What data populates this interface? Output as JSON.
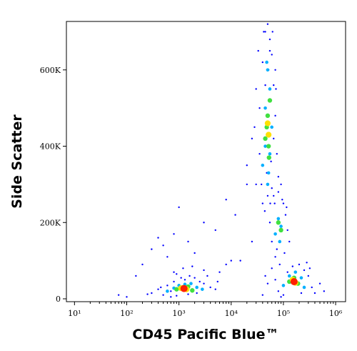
{
  "chart_data": {
    "type": "scatter",
    "xlabel": "CD45 Pacific Blue™",
    "ylabel": "Side Scatter",
    "xscale": "log",
    "xlim": [
      7,
      1550000
    ],
    "xticks": [
      {
        "value": 10,
        "label": "10¹"
      },
      {
        "value": 100,
        "label": "10²"
      },
      {
        "value": 1000,
        "label": "10³"
      },
      {
        "value": 10000,
        "label": "10⁴"
      },
      {
        "value": 100000,
        "label": "10⁵"
      },
      {
        "value": 1000000,
        "label": "10⁶"
      }
    ],
    "ylim": [
      -7500,
      727000
    ],
    "yticks": [
      0,
      {
        "value": 200000,
        "label": "200K"
      },
      {
        "value": 400000,
        "label": "400K"
      },
      {
        "value": 600000,
        "label": "600K"
      }
    ],
    "series": [
      {
        "color": "#0000ff",
        "x": [
          300,
          400,
          500,
          600,
          700,
          800,
          900,
          1100,
          1300,
          1600,
          2000,
          2500,
          3000,
          3500,
          4000,
          5000,
          6000,
          700,
          1500,
          2200,
          800,
          1200,
          3000,
          450,
          5500,
          8000,
          250,
          10000,
          1800,
          900,
          100,
          150,
          200,
          300,
          400,
          500,
          600,
          800,
          1000,
          1500,
          2000,
          3000,
          5000,
          8000,
          12000,
          15000,
          20000,
          25000,
          70,
          20000,
          25000,
          30000,
          35000,
          40000,
          45000,
          50000,
          55000,
          60000,
          65000,
          70000,
          75000,
          80000,
          30000,
          40000,
          50000,
          60000,
          70000,
          35000,
          45000,
          55000,
          65000,
          28000,
          38000,
          48000,
          58000,
          68000,
          42000,
          52000,
          62000,
          44000,
          56000,
          33000,
          72000,
          55000,
          60000,
          70000,
          80000,
          90000,
          100000,
          110000,
          120000,
          130000,
          65000,
          75000,
          85000,
          95000,
          105000,
          115000,
          40000,
          50000,
          60000,
          80000,
          100000,
          120000,
          150000,
          200000,
          250000,
          300000,
          350000,
          400000,
          500000,
          600000,
          45000,
          70000,
          90000,
          220000,
          280000,
          320000
        ],
        "values": [
          15000,
          25000,
          10000,
          35000,
          20000,
          45000,
          8000,
          55000,
          50000,
          60000,
          55000,
          45000,
          40000,
          60000,
          30000,
          25000,
          70000,
          5000,
          12000,
          15000,
          70000,
          80000,
          75000,
          30000,
          45000,
          90000,
          12000,
          100000,
          85000,
          65000,
          5000,
          60000,
          90000,
          130000,
          160000,
          140000,
          110000,
          170000,
          240000,
          150000,
          120000,
          200000,
          180000,
          260000,
          220000,
          100000,
          300000,
          150000,
          10000,
          350000,
          420000,
          300000,
          500000,
          620000,
          700000,
          720000,
          680000,
          640000,
          560000,
          480000,
          380000,
          320000,
          550000,
          250000,
          270000,
          290000,
          600000,
          380000,
          560000,
          650000,
          420000,
          450000,
          300000,
          330000,
          360000,
          250000,
          700000,
          600000,
          700000,
          230000,
          250000,
          650000,
          550000,
          200000,
          150000,
          110000,
          280000,
          300000,
          250000,
          220000,
          180000,
          150000,
          270000,
          130000,
          90000,
          260000,
          120000,
          240000,
          10000,
          40000,
          80000,
          20000,
          10000,
          70000,
          85000,
          90000,
          75000,
          60000,
          30000,
          15000,
          40000,
          20000,
          60000,
          50000,
          5000,
          15000,
          95000,
          80000
        ]
      },
      {
        "color": "#00b0ff",
        "x": [
          600,
          800,
          1000,
          1300,
          1700,
          2200,
          2800,
          40000,
          45000,
          50000,
          55000,
          60000,
          50000,
          45000,
          55000,
          48000,
          52000,
          70000,
          80000,
          90000,
          85000,
          100000,
          130000,
          170000,
          220000,
          250000
        ],
        "values": [
          20000,
          28000,
          35000,
          38000,
          40000,
          30000,
          25000,
          350000,
          400000,
          600000,
          550000,
          450000,
          300000,
          500000,
          380000,
          620000,
          330000,
          170000,
          210000,
          190000,
          150000,
          35000,
          60000,
          70000,
          55000,
          30000
        ]
      },
      {
        "color": "#40e040",
        "x": [
          900,
          1200,
          1500,
          1800,
          45000,
          50000,
          55000,
          52000,
          48000,
          53000,
          80000,
          90000,
          130000,
          160000,
          190000
        ],
        "values": [
          25000,
          30000,
          32000,
          22000,
          420000,
          480000,
          520000,
          400000,
          450000,
          370000,
          200000,
          180000,
          45000,
          55000,
          40000
        ]
      },
      {
        "color": "#ffe000",
        "x": [
          1100,
          1400,
          50000,
          52000,
          150000,
          170000
        ],
        "values": [
          28000,
          25000,
          460000,
          430000,
          50000,
          42000
        ]
      },
      {
        "color": "#ff2000",
        "x": [
          1250,
          160000
        ],
        "values": [
          27000,
          45000
        ]
      }
    ]
  }
}
